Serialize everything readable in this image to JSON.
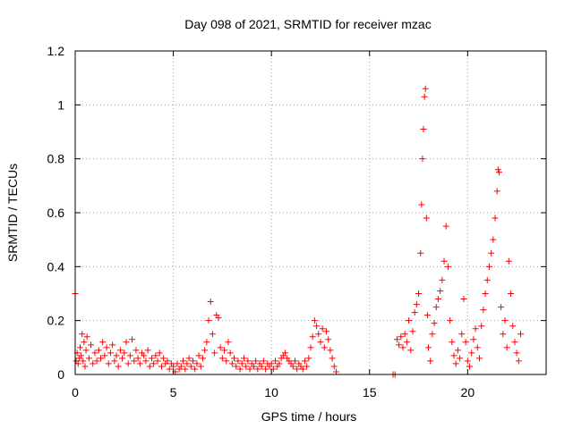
{
  "chart_data": {
    "type": "scatter",
    "title": "Day 098 of 2021, SRMTID for receiver mzac",
    "xlabel": "GPS time / hours",
    "ylabel": "SRMTID / TECUs",
    "xlim": [
      0,
      24
    ],
    "ylim": [
      0,
      1.2
    ],
    "grid": true,
    "marker": "+",
    "color": "#ff0000",
    "xticks": [
      0,
      5,
      10,
      15,
      20
    ],
    "xtick_labels": [
      "0",
      "5",
      "10",
      "15",
      "20"
    ],
    "yticks": [
      0,
      0.2,
      0.4,
      0.6,
      0.8,
      1.0,
      1.2
    ],
    "ytick_labels": [
      "0",
      "0.2",
      "0.4",
      "0.6",
      "0.8",
      "1",
      "1.2"
    ],
    "series": [
      {
        "name": "SRMTID",
        "points": [
          [
            0.0,
            0.3
          ],
          [
            0.05,
            0.05
          ],
          [
            0.1,
            0.08
          ],
          [
            0.15,
            0.04
          ],
          [
            0.2,
            0.06
          ],
          [
            0.25,
            0.1
          ],
          [
            0.3,
            0.07
          ],
          [
            0.35,
            0.15
          ],
          [
            0.4,
            0.05
          ],
          [
            0.45,
            0.12
          ],
          [
            0.5,
            0.03
          ],
          [
            0.55,
            0.09
          ],
          [
            0.6,
            0.14
          ],
          [
            0.7,
            0.06
          ],
          [
            0.8,
            0.11
          ],
          [
            0.9,
            0.04
          ],
          [
            1.0,
            0.08
          ],
          [
            1.1,
            0.05
          ],
          [
            1.2,
            0.09
          ],
          [
            1.3,
            0.06
          ],
          [
            1.4,
            0.12
          ],
          [
            1.5,
            0.07
          ],
          [
            1.6,
            0.1
          ],
          [
            1.7,
            0.04
          ],
          [
            1.8,
            0.08
          ],
          [
            1.9,
            0.11
          ],
          [
            2.0,
            0.05
          ],
          [
            2.1,
            0.07
          ],
          [
            2.2,
            0.03
          ],
          [
            2.3,
            0.09
          ],
          [
            2.4,
            0.06
          ],
          [
            2.5,
            0.08
          ],
          [
            2.6,
            0.12
          ],
          [
            2.7,
            0.04
          ],
          [
            2.8,
            0.07
          ],
          [
            2.9,
            0.13
          ],
          [
            3.0,
            0.05
          ],
          [
            3.1,
            0.09
          ],
          [
            3.2,
            0.06
          ],
          [
            3.3,
            0.04
          ],
          [
            3.4,
            0.08
          ],
          [
            3.5,
            0.07
          ],
          [
            3.6,
            0.05
          ],
          [
            3.7,
            0.09
          ],
          [
            3.8,
            0.03
          ],
          [
            3.9,
            0.06
          ],
          [
            4.0,
            0.04
          ],
          [
            4.1,
            0.07
          ],
          [
            4.2,
            0.05
          ],
          [
            4.3,
            0.08
          ],
          [
            4.4,
            0.03
          ],
          [
            4.5,
            0.06
          ],
          [
            4.6,
            0.04
          ],
          [
            4.7,
            0.05
          ],
          [
            4.8,
            0.02
          ],
          [
            4.9,
            0.04
          ],
          [
            5.0,
            0.03
          ],
          [
            5.1,
            0.01
          ],
          [
            5.2,
            0.04
          ],
          [
            5.3,
            0.02
          ],
          [
            5.4,
            0.03
          ],
          [
            5.5,
            0.05
          ],
          [
            5.6,
            0.02
          ],
          [
            5.7,
            0.04
          ],
          [
            5.8,
            0.06
          ],
          [
            5.9,
            0.03
          ],
          [
            6.0,
            0.05
          ],
          [
            6.1,
            0.02
          ],
          [
            6.2,
            0.04
          ],
          [
            6.3,
            0.07
          ],
          [
            6.4,
            0.03
          ],
          [
            6.5,
            0.06
          ],
          [
            6.6,
            0.09
          ],
          [
            6.7,
            0.12
          ],
          [
            6.8,
            0.2
          ],
          [
            6.9,
            0.27
          ],
          [
            7.0,
            0.15
          ],
          [
            7.1,
            0.08
          ],
          [
            7.2,
            0.22
          ],
          [
            7.3,
            0.21
          ],
          [
            7.4,
            0.1
          ],
          [
            7.5,
            0.06
          ],
          [
            7.6,
            0.09
          ],
          [
            7.7,
            0.05
          ],
          [
            7.8,
            0.12
          ],
          [
            7.9,
            0.08
          ],
          [
            8.0,
            0.04
          ],
          [
            8.1,
            0.06
          ],
          [
            8.2,
            0.03
          ],
          [
            8.3,
            0.05
          ],
          [
            8.4,
            0.02
          ],
          [
            8.5,
            0.04
          ],
          [
            8.6,
            0.06
          ],
          [
            8.7,
            0.03
          ],
          [
            8.8,
            0.05
          ],
          [
            8.9,
            0.02
          ],
          [
            9.0,
            0.04
          ],
          [
            9.1,
            0.03
          ],
          [
            9.2,
            0.05
          ],
          [
            9.3,
            0.02
          ],
          [
            9.4,
            0.04
          ],
          [
            9.5,
            0.03
          ],
          [
            9.6,
            0.05
          ],
          [
            9.7,
            0.02
          ],
          [
            9.8,
            0.04
          ],
          [
            9.9,
            0.03
          ],
          [
            10.0,
            0.04
          ],
          [
            10.1,
            0.02
          ],
          [
            10.2,
            0.05
          ],
          [
            10.3,
            0.03
          ],
          [
            10.4,
            0.04
          ],
          [
            10.5,
            0.06
          ],
          [
            10.6,
            0.07
          ],
          [
            10.7,
            0.08
          ],
          [
            10.8,
            0.06
          ],
          [
            10.9,
            0.05
          ],
          [
            11.0,
            0.04
          ],
          [
            11.1,
            0.03
          ],
          [
            11.2,
            0.05
          ],
          [
            11.3,
            0.02
          ],
          [
            11.4,
            0.04
          ],
          [
            11.5,
            0.03
          ],
          [
            11.6,
            0.02
          ],
          [
            11.7,
            0.05
          ],
          [
            11.8,
            0.03
          ],
          [
            11.9,
            0.06
          ],
          [
            12.0,
            0.1
          ],
          [
            12.1,
            0.14
          ],
          [
            12.2,
            0.2
          ],
          [
            12.3,
            0.18
          ],
          [
            12.4,
            0.15
          ],
          [
            12.5,
            0.12
          ],
          [
            12.6,
            0.17
          ],
          [
            12.7,
            0.1
          ],
          [
            12.8,
            0.16
          ],
          [
            12.9,
            0.13
          ],
          [
            13.0,
            0.09
          ],
          [
            13.1,
            0.06
          ],
          [
            13.2,
            0.03
          ],
          [
            13.3,
            0.01
          ],
          [
            16.2,
            0.0
          ],
          [
            16.3,
            0.0
          ],
          [
            16.4,
            0.13
          ],
          [
            16.5,
            0.11
          ],
          [
            16.6,
            0.14
          ],
          [
            16.7,
            0.1
          ],
          [
            16.8,
            0.15
          ],
          [
            16.9,
            0.12
          ],
          [
            17.0,
            0.2
          ],
          [
            17.1,
            0.09
          ],
          [
            17.2,
            0.16
          ],
          [
            17.3,
            0.23
          ],
          [
            17.4,
            0.26
          ],
          [
            17.5,
            0.3
          ],
          [
            17.6,
            0.45
          ],
          [
            17.65,
            0.63
          ],
          [
            17.7,
            0.8
          ],
          [
            17.75,
            0.91
          ],
          [
            17.8,
            1.03
          ],
          [
            17.85,
            1.06
          ],
          [
            17.9,
            0.58
          ],
          [
            17.95,
            0.22
          ],
          [
            18.0,
            0.1
          ],
          [
            18.1,
            0.05
          ],
          [
            18.2,
            0.15
          ],
          [
            18.3,
            0.19
          ],
          [
            18.4,
            0.25
          ],
          [
            18.5,
            0.28
          ],
          [
            18.6,
            0.31
          ],
          [
            18.7,
            0.35
          ],
          [
            18.8,
            0.42
          ],
          [
            18.9,
            0.55
          ],
          [
            19.0,
            0.4
          ],
          [
            19.1,
            0.2
          ],
          [
            19.2,
            0.12
          ],
          [
            19.3,
            0.07
          ],
          [
            19.4,
            0.04
          ],
          [
            19.5,
            0.09
          ],
          [
            19.6,
            0.06
          ],
          [
            19.7,
            0.15
          ],
          [
            19.8,
            0.28
          ],
          [
            19.9,
            0.12
          ],
          [
            20.0,
            0.05
          ],
          [
            20.1,
            0.03
          ],
          [
            20.2,
            0.08
          ],
          [
            20.3,
            0.13
          ],
          [
            20.4,
            0.17
          ],
          [
            20.5,
            0.1
          ],
          [
            20.6,
            0.06
          ],
          [
            20.7,
            0.18
          ],
          [
            20.8,
            0.24
          ],
          [
            20.9,
            0.3
          ],
          [
            21.0,
            0.35
          ],
          [
            21.1,
            0.4
          ],
          [
            21.2,
            0.45
          ],
          [
            21.3,
            0.5
          ],
          [
            21.4,
            0.58
          ],
          [
            21.5,
            0.68
          ],
          [
            21.55,
            0.76
          ],
          [
            21.6,
            0.75
          ],
          [
            21.7,
            0.25
          ],
          [
            21.8,
            0.15
          ],
          [
            21.9,
            0.2
          ],
          [
            22.0,
            0.1
          ],
          [
            22.1,
            0.42
          ],
          [
            22.2,
            0.3
          ],
          [
            22.3,
            0.18
          ],
          [
            22.4,
            0.12
          ],
          [
            22.5,
            0.08
          ],
          [
            22.6,
            0.05
          ],
          [
            22.7,
            0.15
          ]
        ]
      }
    ]
  }
}
